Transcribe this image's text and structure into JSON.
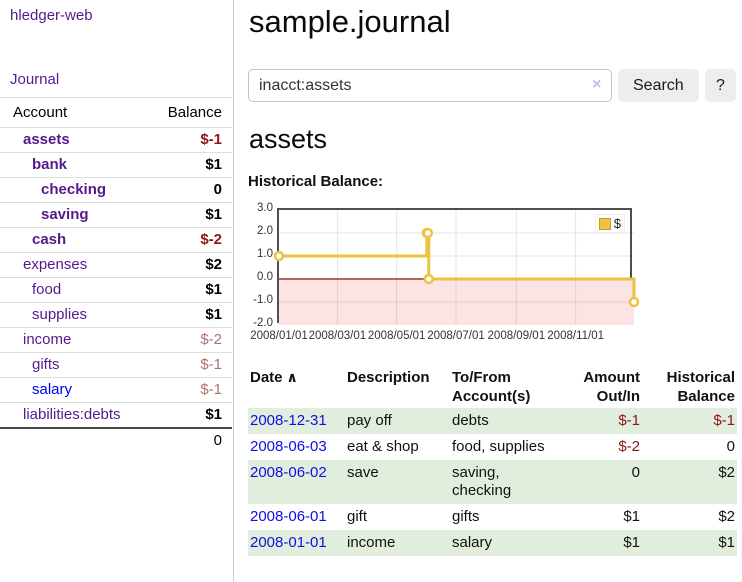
{
  "app": {
    "title": "hledger-web"
  },
  "sidebar": {
    "journal_link": "Journal",
    "accounts": {
      "headers": {
        "account": "Account",
        "balance": "Balance"
      },
      "rows": [
        {
          "name": "assets",
          "balance": "$-1"
        },
        {
          "name": "bank",
          "balance": "$1"
        },
        {
          "name": "checking",
          "balance": "0"
        },
        {
          "name": "saving",
          "balance": "$1"
        },
        {
          "name": "cash",
          "balance": "$-2"
        },
        {
          "name": "expenses",
          "balance": "$2"
        },
        {
          "name": "food",
          "balance": "$1"
        },
        {
          "name": "supplies",
          "balance": "$1"
        },
        {
          "name": "income",
          "balance": "$-2"
        },
        {
          "name": "gifts",
          "balance": "$-1"
        },
        {
          "name": "salary",
          "balance": "$-1"
        },
        {
          "name": "liabilities:debts",
          "balance": "$1"
        }
      ],
      "total": "0"
    }
  },
  "main": {
    "title": "sample.journal",
    "search": {
      "value": "inacct:assets",
      "clear_icon": "×",
      "search_button": "Search",
      "help_button": "?"
    },
    "heading": "assets",
    "chart_label": "Historical Balance:"
  },
  "chart_data": {
    "type": "line",
    "step": true,
    "title": "Historical Balance:",
    "legend": {
      "label": "$",
      "position": "top-right"
    },
    "series": [
      {
        "name": "$",
        "color": "#edc240",
        "points": [
          [
            "2008-01-01",
            1
          ],
          [
            "2008-06-01",
            2
          ],
          [
            "2008-06-02",
            2
          ],
          [
            "2008-06-03",
            0
          ],
          [
            "2008-12-31",
            -1
          ]
        ]
      }
    ],
    "xlim": [
      "2008-01-01",
      "2008-12-31"
    ],
    "ylim": [
      -2,
      3
    ],
    "x_ticks": [
      "2008/01/01",
      "2008/03/01",
      "2008/05/01",
      "2008/07/01",
      "2008/09/01",
      "2008/11/01"
    ],
    "y_ticks": [
      "3.0",
      "2.0",
      "1.0",
      "0.0",
      "-1.0",
      "-2.0"
    ],
    "grid": true,
    "zero_line_color": "#8b1212",
    "negative_region_color": "#fce4e4"
  },
  "register": {
    "headers": {
      "date": "Date",
      "sort_indicator": "∧",
      "description": "Description",
      "accounts": "To/From Account(s)",
      "amount": "Amount Out/In",
      "balance": "Historical Balance"
    },
    "rows": [
      {
        "date": "2008-12-31",
        "description": "pay off",
        "accounts": "debts",
        "amount": "$-1",
        "balance": "$-1"
      },
      {
        "date": "2008-06-03",
        "description": "eat & shop",
        "accounts": "food, supplies",
        "amount": "$-2",
        "balance": "0"
      },
      {
        "date": "2008-06-02",
        "description": "save",
        "accounts": "saving, checking",
        "amount": "0",
        "balance": "$2"
      },
      {
        "date": "2008-06-01",
        "description": "gift",
        "accounts": "gifts",
        "amount": "$1",
        "balance": "$2"
      },
      {
        "date": "2008-01-01",
        "description": "income",
        "accounts": "salary",
        "amount": "$1",
        "balance": "$1"
      }
    ]
  }
}
